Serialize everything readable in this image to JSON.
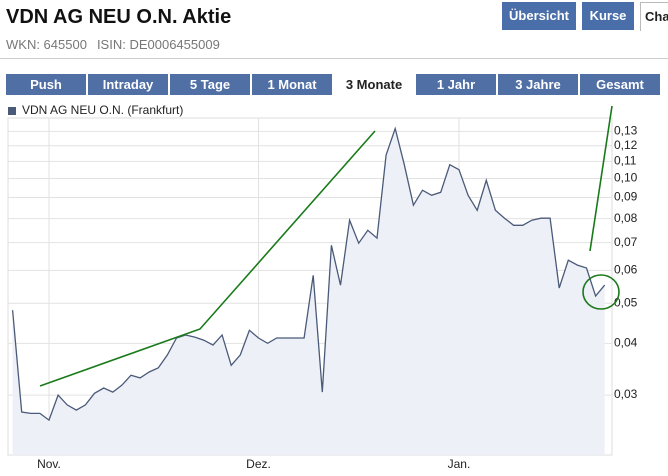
{
  "header": {
    "title": "VDN AG NEU O.N. Aktie",
    "wkn": "WKN: 645500",
    "isin": "ISIN: DE0006455009"
  },
  "nav": {
    "buttons": [
      "Übersicht",
      "Kurse",
      "Cha"
    ]
  },
  "tabs": [
    "Push",
    "Intraday",
    "5 Tage",
    "1 Monat",
    "3 Monate",
    "1 Jahr",
    "3 Jahre",
    "Gesamt"
  ],
  "chart_data": {
    "type": "line",
    "log_scale_y": true,
    "grid": true,
    "area_color": "#eef0f8",
    "series": [
      {
        "name": "VDN AG NEU O.N. (Frankfurt)",
        "color": "#4a5a78",
        "values": [
          0.0481,
          0.0273,
          0.0271,
          0.0271,
          0.0261,
          0.03,
          0.0284,
          0.0276,
          0.0284,
          0.0303,
          0.0312,
          0.0305,
          0.0317,
          0.0335,
          0.033,
          0.0341,
          0.0349,
          0.0375,
          0.0412,
          0.0419,
          0.0414,
          0.0407,
          0.0396,
          0.0419,
          0.0354,
          0.0375,
          0.043,
          0.0412,
          0.04,
          0.0412,
          0.0412,
          0.0412,
          0.0412,
          0.0584,
          0.0305,
          0.069,
          0.0553,
          0.0793,
          0.0698,
          0.075,
          0.0718,
          0.114,
          0.132,
          0.108,
          0.0862,
          0.0937,
          0.0911,
          0.0926,
          0.108,
          0.105,
          0.0911,
          0.0838,
          0.099,
          0.0838,
          0.0802,
          0.0771,
          0.0771,
          0.0793,
          0.0802,
          0.0802,
          0.0544,
          0.0635,
          0.0618,
          0.0608,
          0.052,
          0.0553
        ]
      }
    ],
    "xlim": [
      -0.5,
      65.8
    ],
    "xticks": [
      {
        "value": 4,
        "label": "Nov."
      },
      {
        "value": 27,
        "label": "Dez."
      },
      {
        "value": 49,
        "label": "Jan."
      }
    ],
    "ylim": [
      0.0215,
      0.14
    ],
    "yticks": [
      {
        "value": 0.03,
        "label": "0,03"
      },
      {
        "value": 0.04,
        "label": "0,04"
      },
      {
        "value": 0.05,
        "label": "0,05"
      },
      {
        "value": 0.06,
        "label": "0,06"
      },
      {
        "value": 0.07,
        "label": "0,07"
      },
      {
        "value": 0.08,
        "label": "0,08"
      },
      {
        "value": 0.09,
        "label": "0,09"
      },
      {
        "value": 0.1,
        "label": "0,10"
      },
      {
        "value": 0.11,
        "label": "0,11"
      },
      {
        "value": 0.12,
        "label": "0,12"
      },
      {
        "value": 0.13,
        "label": "0,13"
      }
    ]
  }
}
